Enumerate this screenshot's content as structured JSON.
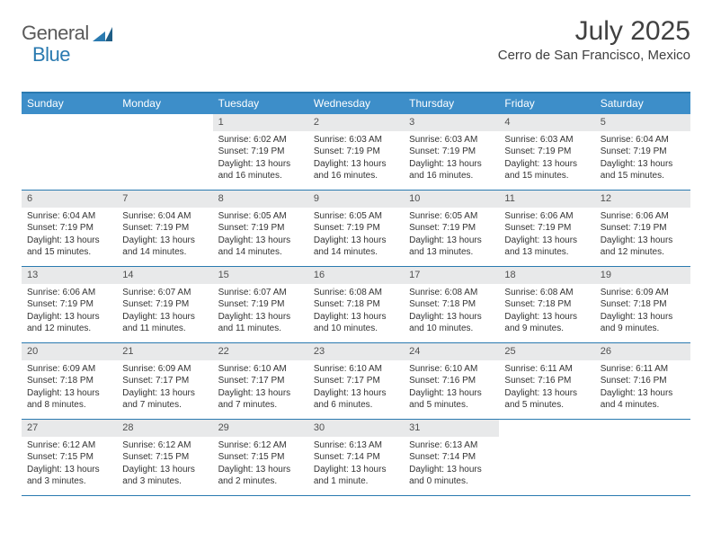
{
  "logo": {
    "text1": "General",
    "text2": "Blue"
  },
  "title": "July 2025",
  "location": "Cerro de San Francisco, Mexico",
  "weekdays": [
    "Sunday",
    "Monday",
    "Tuesday",
    "Wednesday",
    "Thursday",
    "Friday",
    "Saturday"
  ],
  "colors": {
    "header_bar": "#3d8ec9",
    "border": "#2a7ab0",
    "daynum_bg": "#e8e9ea",
    "text": "#333333"
  },
  "weeks": [
    [
      null,
      null,
      {
        "n": "1",
        "sr": "6:02 AM",
        "ss": "7:19 PM",
        "dl": "13 hours and 16 minutes."
      },
      {
        "n": "2",
        "sr": "6:03 AM",
        "ss": "7:19 PM",
        "dl": "13 hours and 16 minutes."
      },
      {
        "n": "3",
        "sr": "6:03 AM",
        "ss": "7:19 PM",
        "dl": "13 hours and 16 minutes."
      },
      {
        "n": "4",
        "sr": "6:03 AM",
        "ss": "7:19 PM",
        "dl": "13 hours and 15 minutes."
      },
      {
        "n": "5",
        "sr": "6:04 AM",
        "ss": "7:19 PM",
        "dl": "13 hours and 15 minutes."
      }
    ],
    [
      {
        "n": "6",
        "sr": "6:04 AM",
        "ss": "7:19 PM",
        "dl": "13 hours and 15 minutes."
      },
      {
        "n": "7",
        "sr": "6:04 AM",
        "ss": "7:19 PM",
        "dl": "13 hours and 14 minutes."
      },
      {
        "n": "8",
        "sr": "6:05 AM",
        "ss": "7:19 PM",
        "dl": "13 hours and 14 minutes."
      },
      {
        "n": "9",
        "sr": "6:05 AM",
        "ss": "7:19 PM",
        "dl": "13 hours and 14 minutes."
      },
      {
        "n": "10",
        "sr": "6:05 AM",
        "ss": "7:19 PM",
        "dl": "13 hours and 13 minutes."
      },
      {
        "n": "11",
        "sr": "6:06 AM",
        "ss": "7:19 PM",
        "dl": "13 hours and 13 minutes."
      },
      {
        "n": "12",
        "sr": "6:06 AM",
        "ss": "7:19 PM",
        "dl": "13 hours and 12 minutes."
      }
    ],
    [
      {
        "n": "13",
        "sr": "6:06 AM",
        "ss": "7:19 PM",
        "dl": "13 hours and 12 minutes."
      },
      {
        "n": "14",
        "sr": "6:07 AM",
        "ss": "7:19 PM",
        "dl": "13 hours and 11 minutes."
      },
      {
        "n": "15",
        "sr": "6:07 AM",
        "ss": "7:19 PM",
        "dl": "13 hours and 11 minutes."
      },
      {
        "n": "16",
        "sr": "6:08 AM",
        "ss": "7:18 PM",
        "dl": "13 hours and 10 minutes."
      },
      {
        "n": "17",
        "sr": "6:08 AM",
        "ss": "7:18 PM",
        "dl": "13 hours and 10 minutes."
      },
      {
        "n": "18",
        "sr": "6:08 AM",
        "ss": "7:18 PM",
        "dl": "13 hours and 9 minutes."
      },
      {
        "n": "19",
        "sr": "6:09 AM",
        "ss": "7:18 PM",
        "dl": "13 hours and 9 minutes."
      }
    ],
    [
      {
        "n": "20",
        "sr": "6:09 AM",
        "ss": "7:18 PM",
        "dl": "13 hours and 8 minutes."
      },
      {
        "n": "21",
        "sr": "6:09 AM",
        "ss": "7:17 PM",
        "dl": "13 hours and 7 minutes."
      },
      {
        "n": "22",
        "sr": "6:10 AM",
        "ss": "7:17 PM",
        "dl": "13 hours and 7 minutes."
      },
      {
        "n": "23",
        "sr": "6:10 AM",
        "ss": "7:17 PM",
        "dl": "13 hours and 6 minutes."
      },
      {
        "n": "24",
        "sr": "6:10 AM",
        "ss": "7:16 PM",
        "dl": "13 hours and 5 minutes."
      },
      {
        "n": "25",
        "sr": "6:11 AM",
        "ss": "7:16 PM",
        "dl": "13 hours and 5 minutes."
      },
      {
        "n": "26",
        "sr": "6:11 AM",
        "ss": "7:16 PM",
        "dl": "13 hours and 4 minutes."
      }
    ],
    [
      {
        "n": "27",
        "sr": "6:12 AM",
        "ss": "7:15 PM",
        "dl": "13 hours and 3 minutes."
      },
      {
        "n": "28",
        "sr": "6:12 AM",
        "ss": "7:15 PM",
        "dl": "13 hours and 3 minutes."
      },
      {
        "n": "29",
        "sr": "6:12 AM",
        "ss": "7:15 PM",
        "dl": "13 hours and 2 minutes."
      },
      {
        "n": "30",
        "sr": "6:13 AM",
        "ss": "7:14 PM",
        "dl": "13 hours and 1 minute."
      },
      {
        "n": "31",
        "sr": "6:13 AM",
        "ss": "7:14 PM",
        "dl": "13 hours and 0 minutes."
      },
      null,
      null
    ]
  ],
  "labels": {
    "sunrise": "Sunrise:",
    "sunset": "Sunset:",
    "daylight": "Daylight:"
  }
}
